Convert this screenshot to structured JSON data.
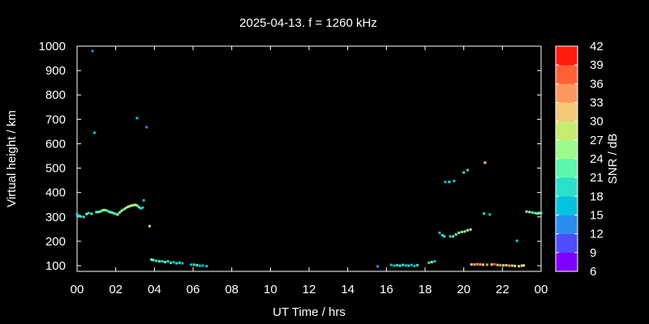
{
  "chart_data": {
    "type": "scatter",
    "title": "2025-04-13. f = 1260 kHz",
    "xlabel": "UT Time / hrs",
    "ylabel": "Virtual height / km",
    "xlim": [
      0,
      24
    ],
    "ylim": [
      80,
      1000
    ],
    "xtick_labels": [
      "00",
      "02",
      "04",
      "06",
      "08",
      "10",
      "12",
      "14",
      "16",
      "18",
      "20",
      "22",
      "00"
    ],
    "ytick_labels": [
      "100",
      "200",
      "300",
      "400",
      "500",
      "600",
      "700",
      "800",
      "900",
      "1000"
    ],
    "grid": false,
    "colorbar": {
      "label": "SNR / dB",
      "range": [
        6,
        42
      ],
      "tick_labels": [
        "6",
        "9",
        "12",
        "15",
        "18",
        "21",
        "24",
        "27",
        "30",
        "33",
        "36",
        "39",
        "42"
      ],
      "colors": [
        "#8000ff",
        "#4f4cfb",
        "#2a8ef0",
        "#07c2de",
        "#2be0ca",
        "#5cf6ae",
        "#9cfb8d",
        "#c8ec71",
        "#f2c87a",
        "#ff9860",
        "#ff6038",
        "#ff1c10"
      ]
    },
    "points": [
      {
        "x": 0.0,
        "y": 310,
        "snr": 19
      },
      {
        "x": 0.1,
        "y": 305,
        "snr": 18
      },
      {
        "x": 0.2,
        "y": 302,
        "snr": 20
      },
      {
        "x": 0.35,
        "y": 300,
        "snr": 18
      },
      {
        "x": 0.5,
        "y": 312,
        "snr": 25
      },
      {
        "x": 0.6,
        "y": 316,
        "snr": 20
      },
      {
        "x": 0.75,
        "y": 313,
        "snr": 22
      },
      {
        "x": 0.8,
        "y": 980,
        "snr": 12
      },
      {
        "x": 0.9,
        "y": 645,
        "snr": 17
      },
      {
        "x": 1.0,
        "y": 320,
        "snr": 22
      },
      {
        "x": 1.1,
        "y": 320,
        "snr": 23
      },
      {
        "x": 1.2,
        "y": 322,
        "snr": 21
      },
      {
        "x": 1.3,
        "y": 326,
        "snr": 26
      },
      {
        "x": 1.4,
        "y": 328,
        "snr": 24
      },
      {
        "x": 1.5,
        "y": 327,
        "snr": 22
      },
      {
        "x": 1.6,
        "y": 323,
        "snr": 20
      },
      {
        "x": 1.7,
        "y": 320,
        "snr": 21
      },
      {
        "x": 1.8,
        "y": 318,
        "snr": 23
      },
      {
        "x": 1.9,
        "y": 315,
        "snr": 22
      },
      {
        "x": 2.0,
        "y": 312,
        "snr": 20
      },
      {
        "x": 2.1,
        "y": 310,
        "snr": 24
      },
      {
        "x": 2.2,
        "y": 318,
        "snr": 25
      },
      {
        "x": 2.3,
        "y": 325,
        "snr": 26
      },
      {
        "x": 2.4,
        "y": 330,
        "snr": 23
      },
      {
        "x": 2.5,
        "y": 335,
        "snr": 25
      },
      {
        "x": 2.6,
        "y": 340,
        "snr": 27
      },
      {
        "x": 2.7,
        "y": 343,
        "snr": 26
      },
      {
        "x": 2.8,
        "y": 346,
        "snr": 25
      },
      {
        "x": 2.9,
        "y": 348,
        "snr": 27
      },
      {
        "x": 3.0,
        "y": 349,
        "snr": 26
      },
      {
        "x": 3.1,
        "y": 347,
        "snr": 24
      },
      {
        "x": 3.1,
        "y": 705,
        "snr": 16
      },
      {
        "x": 3.2,
        "y": 340,
        "snr": 22
      },
      {
        "x": 3.3,
        "y": 335,
        "snr": 18
      },
      {
        "x": 3.4,
        "y": 338,
        "snr": 17
      },
      {
        "x": 3.45,
        "y": 368,
        "snr": 16
      },
      {
        "x": 3.6,
        "y": 668,
        "snr": 12
      },
      {
        "x": 3.75,
        "y": 262,
        "snr": 26
      },
      {
        "x": 3.85,
        "y": 125,
        "snr": 24
      },
      {
        "x": 3.95,
        "y": 123,
        "snr": 22
      },
      {
        "x": 4.1,
        "y": 120,
        "snr": 20
      },
      {
        "x": 4.25,
        "y": 118,
        "snr": 22
      },
      {
        "x": 4.4,
        "y": 118,
        "snr": 19
      },
      {
        "x": 4.55,
        "y": 115,
        "snr": 21
      },
      {
        "x": 4.7,
        "y": 118,
        "snr": 18
      },
      {
        "x": 4.85,
        "y": 112,
        "snr": 20
      },
      {
        "x": 5.0,
        "y": 114,
        "snr": 17
      },
      {
        "x": 5.15,
        "y": 110,
        "snr": 19
      },
      {
        "x": 5.3,
        "y": 112,
        "snr": 18
      },
      {
        "x": 5.45,
        "y": 110,
        "snr": 16
      },
      {
        "x": 5.9,
        "y": 104,
        "snr": 15
      },
      {
        "x": 6.05,
        "y": 104,
        "snr": 18
      },
      {
        "x": 6.2,
        "y": 102,
        "snr": 21
      },
      {
        "x": 6.35,
        "y": 100,
        "snr": 17
      },
      {
        "x": 6.5,
        "y": 100,
        "snr": 16
      },
      {
        "x": 6.7,
        "y": 98,
        "snr": 15
      },
      {
        "x": 15.55,
        "y": 97,
        "snr": 14
      },
      {
        "x": 16.25,
        "y": 103,
        "snr": 15
      },
      {
        "x": 16.4,
        "y": 100,
        "snr": 17
      },
      {
        "x": 16.55,
        "y": 102,
        "snr": 20
      },
      {
        "x": 16.7,
        "y": 100,
        "snr": 22
      },
      {
        "x": 16.85,
        "y": 103,
        "snr": 19
      },
      {
        "x": 17.0,
        "y": 101,
        "snr": 16
      },
      {
        "x": 17.15,
        "y": 100,
        "snr": 20
      },
      {
        "x": 17.3,
        "y": 103,
        "snr": 17
      },
      {
        "x": 17.45,
        "y": 99,
        "snr": 15
      },
      {
        "x": 17.6,
        "y": 102,
        "snr": 18
      },
      {
        "x": 18.2,
        "y": 112,
        "snr": 19
      },
      {
        "x": 18.35,
        "y": 115,
        "snr": 24
      },
      {
        "x": 18.5,
        "y": 118,
        "snr": 16
      },
      {
        "x": 18.75,
        "y": 235,
        "snr": 15
      },
      {
        "x": 18.9,
        "y": 225,
        "snr": 18
      },
      {
        "x": 19.0,
        "y": 220,
        "snr": 20
      },
      {
        "x": 19.05,
        "y": 443,
        "snr": 17
      },
      {
        "x": 19.25,
        "y": 443,
        "snr": 18
      },
      {
        "x": 19.3,
        "y": 220,
        "snr": 19
      },
      {
        "x": 19.45,
        "y": 220,
        "snr": 21
      },
      {
        "x": 19.5,
        "y": 447,
        "snr": 16
      },
      {
        "x": 19.6,
        "y": 228,
        "snr": 22
      },
      {
        "x": 19.75,
        "y": 235,
        "snr": 25
      },
      {
        "x": 19.9,
        "y": 238,
        "snr": 24
      },
      {
        "x": 20.0,
        "y": 482,
        "snr": 20
      },
      {
        "x": 20.05,
        "y": 240,
        "snr": 26
      },
      {
        "x": 20.2,
        "y": 492,
        "snr": 19
      },
      {
        "x": 20.2,
        "y": 245,
        "snr": 25
      },
      {
        "x": 20.35,
        "y": 248,
        "snr": 27
      },
      {
        "x": 20.4,
        "y": 105,
        "snr": 32
      },
      {
        "x": 20.55,
        "y": 105,
        "snr": 35
      },
      {
        "x": 20.7,
        "y": 106,
        "snr": 33
      },
      {
        "x": 20.85,
        "y": 105,
        "snr": 34
      },
      {
        "x": 21.0,
        "y": 104,
        "snr": 31
      },
      {
        "x": 21.1,
        "y": 522,
        "snr": 30
      },
      {
        "x": 21.05,
        "y": 314,
        "snr": 19
      },
      {
        "x": 21.2,
        "y": 104,
        "snr": 33
      },
      {
        "x": 21.35,
        "y": 310,
        "snr": 17
      },
      {
        "x": 21.45,
        "y": 105,
        "snr": 30
      },
      {
        "x": 21.6,
        "y": 106,
        "snr": 36
      },
      {
        "x": 21.75,
        "y": 103,
        "snr": 31
      },
      {
        "x": 21.9,
        "y": 102,
        "snr": 34
      },
      {
        "x": 22.05,
        "y": 101,
        "snr": 30
      },
      {
        "x": 22.2,
        "y": 102,
        "snr": 29
      },
      {
        "x": 22.35,
        "y": 100,
        "snr": 33
      },
      {
        "x": 22.5,
        "y": 100,
        "snr": 31
      },
      {
        "x": 22.65,
        "y": 99,
        "snr": 28
      },
      {
        "x": 22.75,
        "y": 202,
        "snr": 16
      },
      {
        "x": 22.85,
        "y": 98,
        "snr": 30
      },
      {
        "x": 23.0,
        "y": 100,
        "snr": 32
      },
      {
        "x": 23.1,
        "y": 101,
        "snr": 29
      },
      {
        "x": 23.25,
        "y": 322,
        "snr": 24
      },
      {
        "x": 23.4,
        "y": 320,
        "snr": 25
      },
      {
        "x": 23.55,
        "y": 318,
        "snr": 23
      },
      {
        "x": 23.7,
        "y": 316,
        "snr": 21
      },
      {
        "x": 23.8,
        "y": 314,
        "snr": 22
      },
      {
        "x": 23.9,
        "y": 316,
        "snr": 24
      },
      {
        "x": 24.0,
        "y": 315,
        "snr": 22
      }
    ]
  }
}
